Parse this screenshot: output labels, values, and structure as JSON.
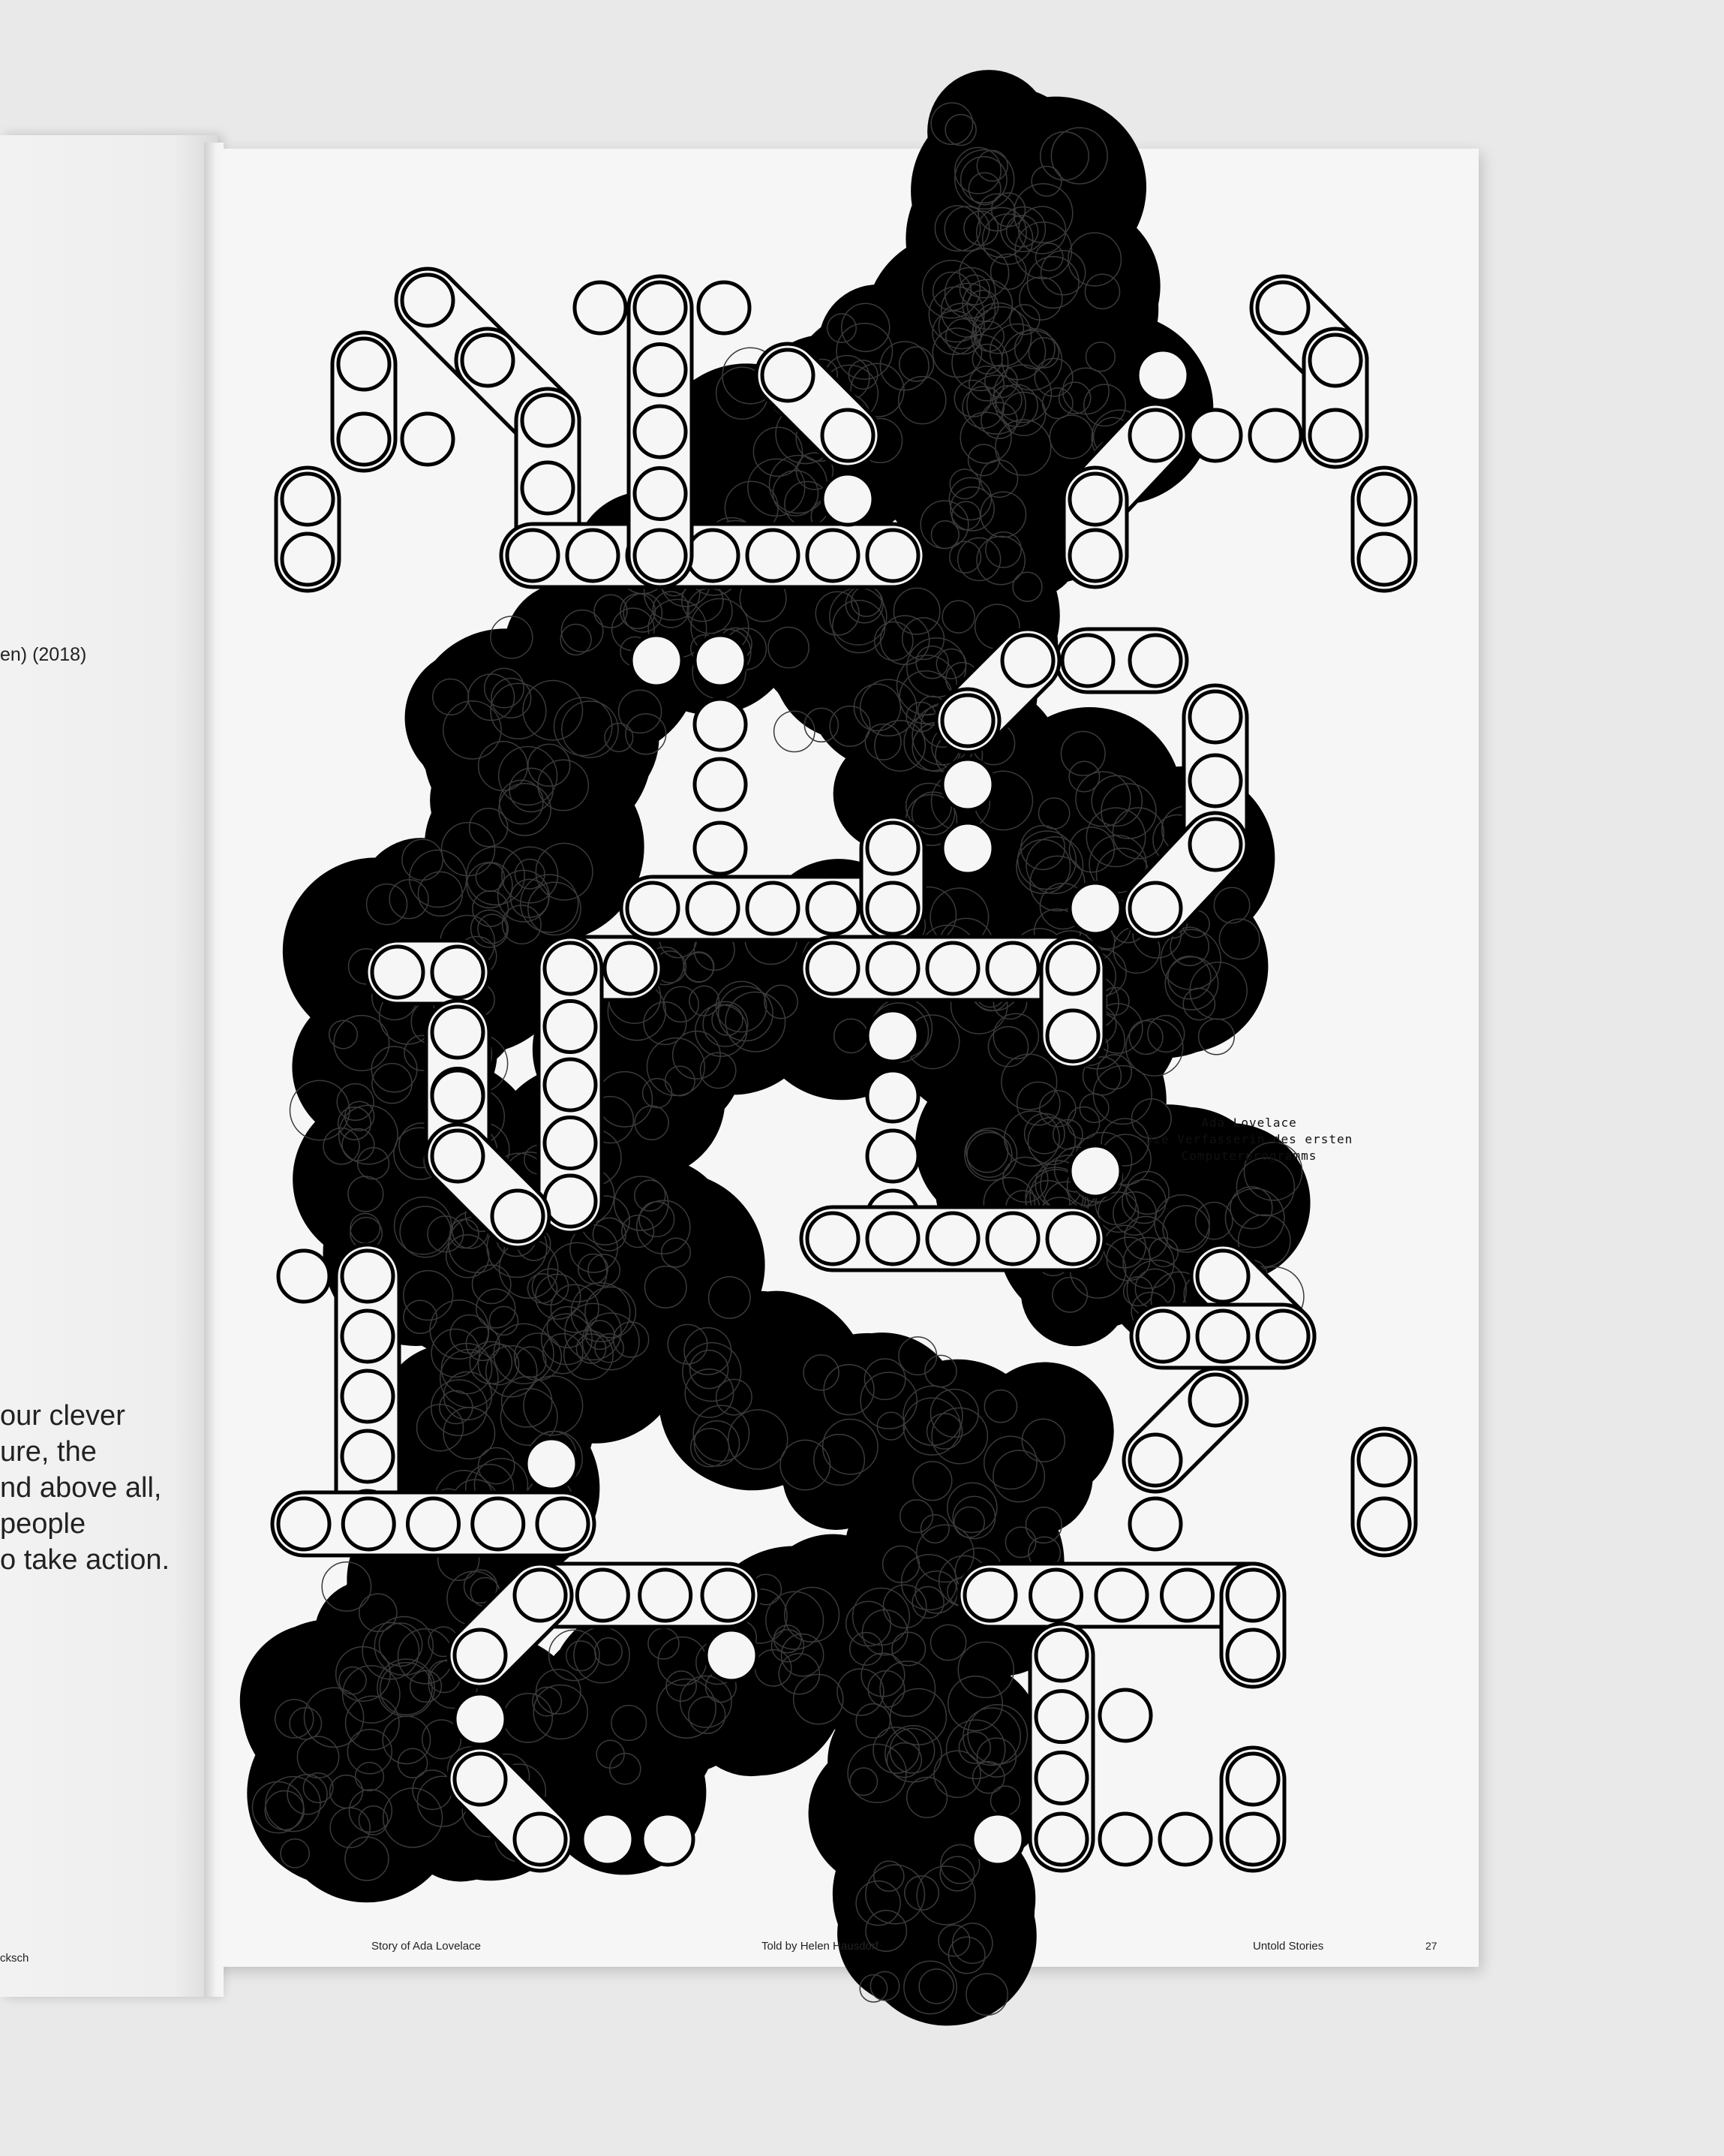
{
  "left_page": {
    "date_fragment": "en) (2018)",
    "quote_lines": [
      "our clever",
      "ure, the",
      "nd above all,",
      "people",
      "o take action."
    ],
    "footer_fragment": "cksch"
  },
  "caption": {
    "title": "Ada Lovelace",
    "line2": "Die Verfasserin des ersten",
    "line3": "Computerprogramms"
  },
  "footer": {
    "story": "Story of Ada Lovelace",
    "told_by": "Told by Helen Hausdorf",
    "series": "Untold Stories",
    "page_number": "27"
  },
  "colors": {
    "ink": "#000000",
    "paper": "#f6f6f6",
    "background": "#e9e9e9"
  }
}
